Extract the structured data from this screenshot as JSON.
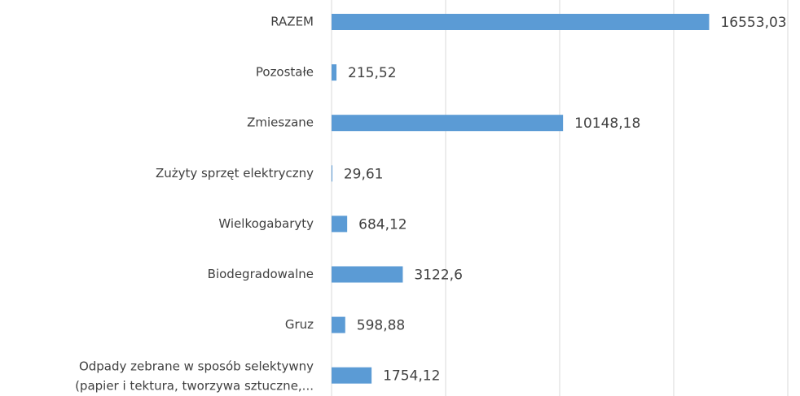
{
  "chart_data": {
    "type": "bar",
    "orientation": "horizontal",
    "categories": [
      "RAZEM",
      "Pozostałe",
      "Zmieszane",
      "Zużyty sprzęt elektryczny",
      "Wielkogabaryty",
      "Biodegradowalne",
      "Gruz",
      "Odpady zebrane w sposób selektywny (papier i tektura, tworzywa sztuczne,..."
    ],
    "values": [
      16553.03,
      215.52,
      10148.18,
      29.61,
      684.12,
      3122.6,
      598.88,
      1754.12
    ],
    "value_labels": [
      "16553,03",
      "215,52",
      "10148,18",
      "29,61",
      "684,12",
      "3122,6",
      "598,88",
      "1754,12"
    ],
    "color": "#5b9bd5",
    "xlim": [
      0,
      20000
    ],
    "xticks": [
      0,
      5000,
      10000,
      15000,
      20000
    ],
    "grid": true
  }
}
